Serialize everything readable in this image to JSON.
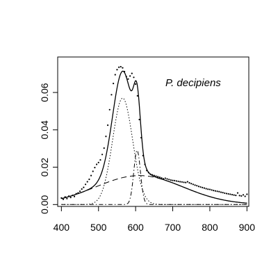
{
  "chart_data": {
    "type": "line",
    "title": "",
    "xlabel": "",
    "ylabel": "",
    "xlim": [
      390,
      905
    ],
    "ylim": [
      -0.001,
      0.079
    ],
    "x_ticks": [
      400,
      500,
      600,
      700,
      800,
      900
    ],
    "x_tick_labels": [
      "400",
      "500",
      "600",
      "700",
      "800",
      "900"
    ],
    "y_ticks": [
      0,
      0.02,
      0.04,
      0.06
    ],
    "y_tick_labels": [
      "0.00",
      "0.02",
      "0.04",
      "0.06"
    ],
    "annotation": "P. decipiens",
    "grid": false,
    "legend": "none",
    "components": [
      {
        "style": "dotted",
        "shape": "gaussian",
        "mean": 565,
        "sd": 27,
        "height": 0.057
      },
      {
        "style": "dashdot",
        "shape": "gaussian",
        "mean": 604,
        "sd": 9,
        "height": 0.029
      },
      {
        "style": "dashed",
        "shape": "gaussian",
        "mean": 610,
        "sd": 118,
        "height": 0.0155
      }
    ],
    "fit": {
      "style": "solid",
      "description": "sum of components"
    },
    "observed": {
      "style": "points",
      "x": [
        400,
        405,
        410,
        415,
        420,
        425,
        430,
        435,
        440,
        445,
        450,
        455,
        460,
        465,
        470,
        475,
        480,
        485,
        490,
        495,
        500,
        505,
        510,
        515,
        520,
        525,
        530,
        535,
        540,
        545,
        550,
        555,
        560,
        565,
        570,
        575,
        580,
        585,
        590,
        595,
        600,
        605,
        610,
        615,
        620,
        625,
        630,
        635,
        640,
        645,
        650,
        655,
        660,
        665,
        670,
        675,
        680,
        685,
        690,
        695,
        700,
        705,
        710,
        715,
        720,
        725,
        730,
        735,
        740,
        745,
        750,
        755,
        760,
        765,
        770,
        775,
        780,
        785,
        790,
        795,
        800,
        805,
        810,
        815,
        820,
        825,
        830,
        835,
        840,
        845,
        850,
        855,
        860,
        865,
        870,
        875,
        880,
        885,
        890,
        895,
        900
      ],
      "y": [
        0.0035,
        0.0028,
        0.0041,
        0.0032,
        0.0045,
        0.0038,
        0.0049,
        0.0043,
        0.0058,
        0.0062,
        0.0071,
        0.0083,
        0.0092,
        0.0108,
        0.0122,
        0.0135,
        0.0155,
        0.0178,
        0.0198,
        0.0215,
        0.0225,
        0.0239,
        0.0268,
        0.0302,
        0.0365,
        0.0425,
        0.0508,
        0.0588,
        0.0648,
        0.0695,
        0.0722,
        0.0735,
        0.0738,
        0.0732,
        0.0712,
        0.0685,
        0.0672,
        0.0688,
        0.0702,
        0.0681,
        0.0645,
        0.0582,
        0.0455,
        0.0358,
        0.0262,
        0.0215,
        0.0182,
        0.0171,
        0.0162,
        0.0159,
        0.0155,
        0.0152,
        0.0149,
        0.0146,
        0.0142,
        0.0138,
        0.0141,
        0.0137,
        0.0134,
        0.0131,
        0.0129,
        0.0128,
        0.0126,
        0.0124,
        0.0122,
        0.0121,
        0.0119,
        0.0118,
        0.0122,
        0.0116,
        0.0112,
        0.0108,
        0.0104,
        0.0101,
        0.0097,
        0.0094,
        0.0091,
        0.0088,
        0.0085,
        0.0082,
        0.0081,
        0.0078,
        0.0075,
        0.0073,
        0.0071,
        0.0069,
        0.0066,
        0.0064,
        0.0061,
        0.0059,
        0.0057,
        0.0055,
        0.0053,
        0.0051,
        0.0049,
        0.0062,
        0.0048,
        0.0046,
        0.0052,
        0.0044,
        0.0055
      ]
    }
  }
}
